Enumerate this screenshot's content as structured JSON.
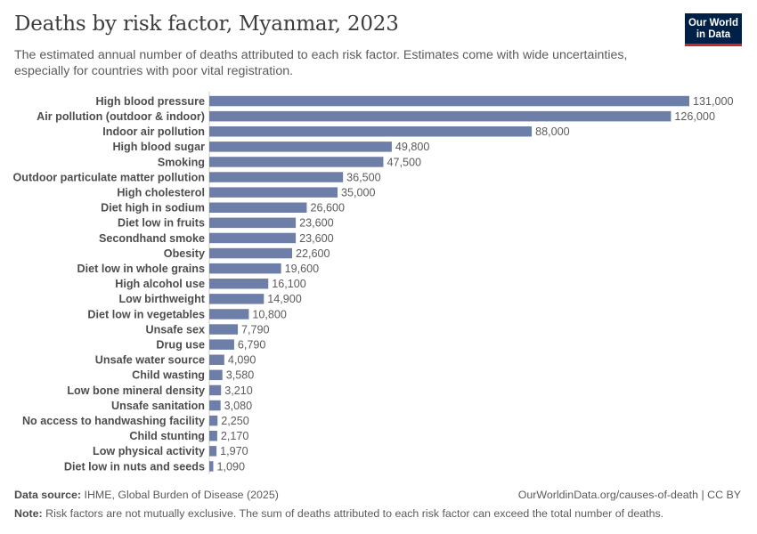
{
  "header": {
    "title": "Deaths by risk factor, Myanmar, 2023",
    "subtitle": "The estimated annual number of deaths attributed to each risk factor. Estimates come with wide uncertainties, especially for countries with poor vital registration."
  },
  "logo": {
    "line1": "Our World",
    "line2": "in Data",
    "bg": "#002147",
    "accent": "#ce261e"
  },
  "footer": {
    "source_label": "Data source:",
    "source_text": "IHME, Global Burden of Disease (2025)",
    "url_text": "OurWorldinData.org/causes-of-death | CC BY",
    "note_label": "Note:",
    "note_text": "Risk factors are not mutually exclusive. The sum of deaths attributed to each risk factor can exceed the total number of deaths."
  },
  "chart_data": {
    "type": "bar",
    "orientation": "horizontal",
    "bar_color": "#6d7fa9",
    "categories": [
      "High blood pressure",
      "Air pollution (outdoor & indoor)",
      "Indoor air pollution",
      "High blood sugar",
      "Smoking",
      "Outdoor particulate matter pollution",
      "High cholesterol",
      "Diet high in sodium",
      "Diet low in fruits",
      "Secondhand smoke",
      "Obesity",
      "Diet low in whole grains",
      "High alcohol use",
      "Low birthweight",
      "Diet low in vegetables",
      "Unsafe sex",
      "Drug use",
      "Unsafe water source",
      "Child wasting",
      "Low bone mineral density",
      "Unsafe sanitation",
      "No access to handwashing facility",
      "Child stunting",
      "Low physical activity",
      "Diet low in nuts and seeds"
    ],
    "values": [
      131000,
      126000,
      88000,
      49800,
      47500,
      36500,
      35000,
      26600,
      23600,
      23600,
      22600,
      19600,
      16100,
      14900,
      10800,
      7790,
      6790,
      4090,
      3580,
      3210,
      3080,
      2250,
      2170,
      1970,
      1090
    ],
    "value_labels": [
      "131,000",
      "126,000",
      "88,000",
      "49,800",
      "47,500",
      "36,500",
      "35,000",
      "26,600",
      "23,600",
      "23,600",
      "22,600",
      "19,600",
      "16,100",
      "14,900",
      "10,800",
      "7,790",
      "6,790",
      "4,090",
      "3,580",
      "3,210",
      "3,080",
      "2,250",
      "2,170",
      "1,970",
      "1,090"
    ],
    "xlim": [
      0,
      131000
    ]
  }
}
